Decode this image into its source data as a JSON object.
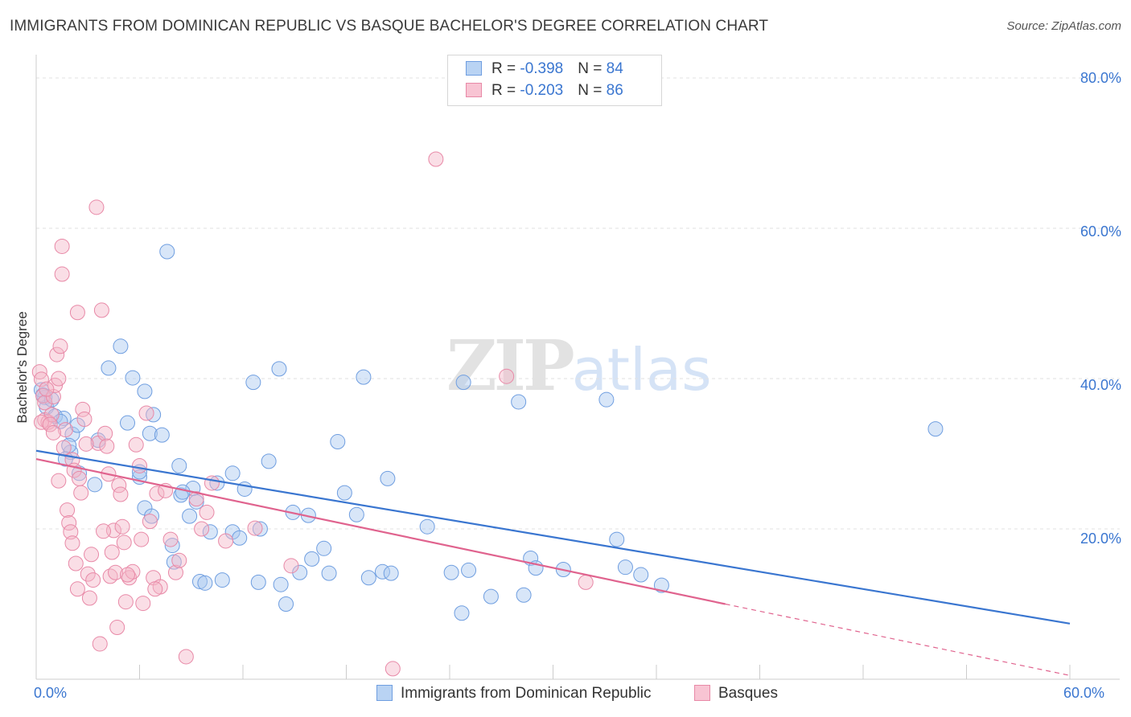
{
  "title": "IMMIGRANTS FROM DOMINICAN REPUBLIC VS BASQUE BACHELOR'S DEGREE CORRELATION CHART",
  "source": "Source: ZipAtlas.com",
  "watermark": {
    "zip": "ZIP",
    "atlas": "atlas"
  },
  "legend_top": [
    {
      "r_label": "R = ",
      "r_value": "-0.398",
      "n_label": "N = ",
      "n_value": "84"
    },
    {
      "r_label": "R = ",
      "r_value": "-0.203",
      "n_label": "N = ",
      "n_value": "86"
    }
  ],
  "colors": {
    "blue": "#3a76d0",
    "blue_fill": "#a9c8f0",
    "pink": "#e0638e",
    "pink_fill": "#f5b6c8",
    "grid": "#e2e2e2",
    "axis_text": "#3a76d0"
  },
  "chart_data": {
    "type": "scatter",
    "title": "IMMIGRANTS FROM DOMINICAN REPUBLIC VS BASQUE BACHELOR'S DEGREE CORRELATION CHART",
    "xlabel": "",
    "ylabel": "Bachelor's Degree",
    "xlim": [
      0,
      60
    ],
    "ylim": [
      0,
      80
    ],
    "x_tick_labels": [
      "0.0%",
      "60.0%"
    ],
    "y_ticks": [
      20,
      40,
      60,
      80
    ],
    "y_tick_labels": [
      "20.0%",
      "40.0%",
      "60.0%",
      "80.0%"
    ],
    "grid": true,
    "legend_position": "bottom",
    "series": [
      {
        "name": "Immigrants from Dominican Republic",
        "color": "#3a76d0",
        "r": -0.398,
        "n": 84,
        "trend": {
          "x0": 0,
          "y0": 30.4,
          "x1": 60,
          "y1": 7.4
        },
        "points": [
          [
            0.5,
            37.5
          ],
          [
            0.6,
            36.2
          ],
          [
            0.3,
            38.5
          ],
          [
            0.4,
            37.8
          ],
          [
            1.1,
            35.0
          ],
          [
            1.6,
            34.7
          ],
          [
            1.4,
            34.3
          ],
          [
            2.1,
            32.6
          ],
          [
            2.0,
            30.2
          ],
          [
            2.5,
            27.4
          ],
          [
            1.9,
            31.1
          ],
          [
            2.4,
            33.8
          ],
          [
            3.6,
            31.8
          ],
          [
            4.2,
            41.4
          ],
          [
            4.9,
            44.3
          ],
          [
            5.6,
            40.1
          ],
          [
            5.3,
            34.1
          ],
          [
            6.0,
            26.9
          ],
          [
            6.3,
            38.3
          ],
          [
            6.6,
            32.7
          ],
          [
            6.8,
            35.2
          ],
          [
            6.3,
            22.8
          ],
          [
            7.3,
            32.5
          ],
          [
            7.6,
            56.9
          ],
          [
            8.3,
            28.4
          ],
          [
            9.1,
            25.4
          ],
          [
            8.9,
            21.7
          ],
          [
            8.4,
            24.5
          ],
          [
            9.3,
            23.6
          ],
          [
            6.7,
            21.7
          ],
          [
            7.9,
            17.8
          ],
          [
            8.0,
            15.6
          ],
          [
            8.5,
            24.9
          ],
          [
            9.5,
            13.0
          ],
          [
            9.8,
            12.8
          ],
          [
            10.1,
            19.6
          ],
          [
            10.8,
            13.2
          ],
          [
            11.4,
            27.4
          ],
          [
            11.4,
            19.6
          ],
          [
            11.8,
            18.8
          ],
          [
            12.1,
            25.3
          ],
          [
            12.6,
            39.5
          ],
          [
            12.9,
            12.9
          ],
          [
            13.0,
            20.0
          ],
          [
            13.5,
            29.0
          ],
          [
            14.1,
            41.3
          ],
          [
            14.2,
            12.6
          ],
          [
            14.5,
            10.0
          ],
          [
            14.9,
            22.2
          ],
          [
            15.3,
            14.2
          ],
          [
            16.0,
            16.0
          ],
          [
            16.7,
            17.4
          ],
          [
            17.0,
            14.1
          ],
          [
            17.5,
            31.6
          ],
          [
            17.9,
            24.8
          ],
          [
            18.6,
            21.9
          ],
          [
            19.0,
            40.2
          ],
          [
            19.3,
            13.5
          ],
          [
            20.1,
            14.3
          ],
          [
            20.6,
            14.1
          ],
          [
            20.4,
            26.7
          ],
          [
            22.7,
            20.3
          ],
          [
            24.1,
            14.2
          ],
          [
            24.7,
            8.8
          ],
          [
            25.1,
            14.5
          ],
          [
            24.8,
            39.5
          ],
          [
            26.4,
            11.0
          ],
          [
            28.0,
            36.9
          ],
          [
            28.3,
            11.2
          ],
          [
            28.7,
            16.1
          ],
          [
            29.0,
            14.8
          ],
          [
            30.6,
            14.6
          ],
          [
            33.1,
            37.2
          ],
          [
            33.7,
            18.6
          ],
          [
            34.2,
            14.9
          ],
          [
            35.1,
            13.9
          ],
          [
            36.3,
            12.5
          ],
          [
            52.2,
            33.3
          ],
          [
            0.9,
            37.2
          ],
          [
            1.7,
            29.3
          ],
          [
            3.4,
            25.9
          ],
          [
            6.0,
            27.6
          ],
          [
            10.5,
            26.1
          ],
          [
            15.8,
            21.8
          ]
        ]
      },
      {
        "name": "Basques",
        "color": "#e0638e",
        "r": -0.203,
        "n": 86,
        "trend": {
          "x0": 0,
          "y0": 29.3,
          "x1": 40,
          "y1": 10.0,
          "dash_x1": 60,
          "dash_y1": 0.5
        },
        "points": [
          [
            0.2,
            40.9
          ],
          [
            0.3,
            39.9
          ],
          [
            0.4,
            37.7
          ],
          [
            0.5,
            36.8
          ],
          [
            0.5,
            34.5
          ],
          [
            0.7,
            34.2
          ],
          [
            0.9,
            35.2
          ],
          [
            1.0,
            37.6
          ],
          [
            1.1,
            39.1
          ],
          [
            1.2,
            43.2
          ],
          [
            1.3,
            40.0
          ],
          [
            1.4,
            44.3
          ],
          [
            1.5,
            57.6
          ],
          [
            1.5,
            53.9
          ],
          [
            1.6,
            30.8
          ],
          [
            1.7,
            33.2
          ],
          [
            1.8,
            22.5
          ],
          [
            1.9,
            20.8
          ],
          [
            2.0,
            19.6
          ],
          [
            2.1,
            29.2
          ],
          [
            2.2,
            27.8
          ],
          [
            2.3,
            15.4
          ],
          [
            2.4,
            12.0
          ],
          [
            2.4,
            48.8
          ],
          [
            2.5,
            26.7
          ],
          [
            2.6,
            24.8
          ],
          [
            2.7,
            35.9
          ],
          [
            2.8,
            34.6
          ],
          [
            3.0,
            14.0
          ],
          [
            3.1,
            10.8
          ],
          [
            3.2,
            16.6
          ],
          [
            3.3,
            13.2
          ],
          [
            3.5,
            62.8
          ],
          [
            3.6,
            31.4
          ],
          [
            3.7,
            4.7
          ],
          [
            3.8,
            49.1
          ],
          [
            4.0,
            32.7
          ],
          [
            4.1,
            31.0
          ],
          [
            4.2,
            27.3
          ],
          [
            4.3,
            13.7
          ],
          [
            4.5,
            19.8
          ],
          [
            4.6,
            14.2
          ],
          [
            4.7,
            6.9
          ],
          [
            4.8,
            25.8
          ],
          [
            4.9,
            24.6
          ],
          [
            5.0,
            20.3
          ],
          [
            5.1,
            18.2
          ],
          [
            5.2,
            10.3
          ],
          [
            5.4,
            13.5
          ],
          [
            5.6,
            14.3
          ],
          [
            5.8,
            31.2
          ],
          [
            6.0,
            28.4
          ],
          [
            6.1,
            18.6
          ],
          [
            6.2,
            10.1
          ],
          [
            6.4,
            35.4
          ],
          [
            6.6,
            21.0
          ],
          [
            6.8,
            13.5
          ],
          [
            7.0,
            24.7
          ],
          [
            7.2,
            12.3
          ],
          [
            7.5,
            25.1
          ],
          [
            7.8,
            18.6
          ],
          [
            8.1,
            14.2
          ],
          [
            8.3,
            15.8
          ],
          [
            8.7,
            3.0
          ],
          [
            9.3,
            24.0
          ],
          [
            9.6,
            20.0
          ],
          [
            10.2,
            26.1
          ],
          [
            11.0,
            18.4
          ],
          [
            14.8,
            15.1
          ],
          [
            23.2,
            69.2
          ],
          [
            27.3,
            40.3
          ],
          [
            31.9,
            12.9
          ],
          [
            20.7,
            1.4
          ],
          [
            0.3,
            34.2
          ],
          [
            0.8,
            33.9
          ],
          [
            1.0,
            32.8
          ],
          [
            2.9,
            31.3
          ],
          [
            0.6,
            38.6
          ],
          [
            5.3,
            13.9
          ],
          [
            3.9,
            19.7
          ],
          [
            6.9,
            12.0
          ],
          [
            2.1,
            18.1
          ],
          [
            12.7,
            20.1
          ],
          [
            9.9,
            22.2
          ],
          [
            4.4,
            16.9
          ],
          [
            1.3,
            26.4
          ]
        ]
      }
    ]
  },
  "bottom_legend": [
    {
      "label": "Immigrants from Dominican Republic"
    },
    {
      "label": "Basques"
    }
  ]
}
